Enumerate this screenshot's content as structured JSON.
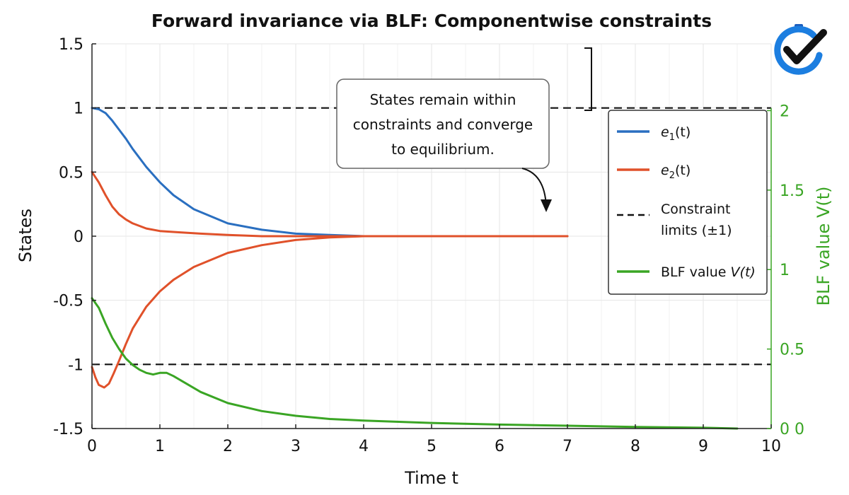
{
  "chart_data": {
    "type": "line",
    "title": "Forward invariance via BLF: Componentwise constraints",
    "xlabel": "Time t",
    "ylabel": "States",
    "y2label": "BLF value V(t)",
    "xlim": [
      0,
      10
    ],
    "ylim": [
      -1.5,
      1.5
    ],
    "y2lim": [
      0,
      2.42
    ],
    "xticks": [
      "0",
      "1",
      "2",
      "3",
      "4",
      "5",
      "6",
      "7",
      "8",
      "9",
      "10"
    ],
    "yticks": [
      "1.5",
      "1",
      "0.5",
      "0",
      "-0.5",
      "-1",
      "-1.5"
    ],
    "y2ticks": [
      "2",
      "1.5",
      "1",
      "0.5",
      "0 0"
    ],
    "grid": true,
    "legend_position": "right",
    "series": [
      {
        "name": "e1(t)",
        "color": "#2a6fc0",
        "axis": "left",
        "x": [
          0,
          0.1,
          0.2,
          0.3,
          0.4,
          0.5,
          0.6,
          0.8,
          1.0,
          1.2,
          1.5,
          2.0,
          2.5,
          3.0,
          3.5,
          4.0,
          5.0,
          6.0,
          7.0
        ],
        "y": [
          1.0,
          0.99,
          0.96,
          0.9,
          0.83,
          0.76,
          0.68,
          0.54,
          0.42,
          0.32,
          0.21,
          0.1,
          0.05,
          0.02,
          0.01,
          0.0,
          0.0,
          0.0,
          0.0
        ]
      },
      {
        "name": "e2(t)",
        "color": "#e0512a",
        "axis": "left",
        "x": [
          0,
          0.1,
          0.2,
          0.3,
          0.4,
          0.5,
          0.6,
          0.8,
          1.0,
          1.3,
          1.6,
          2.0,
          2.5,
          3.0,
          4.0,
          5.0,
          6.0,
          7.0
        ],
        "y": [
          0.5,
          0.42,
          0.32,
          0.23,
          0.17,
          0.13,
          0.1,
          0.06,
          0.04,
          0.03,
          0.02,
          0.01,
          0.0,
          0.0,
          0.0,
          0.0,
          0.0,
          0.0
        ]
      },
      {
        "name": "e2(t) lower branch",
        "color": "#e0512a",
        "axis": "left",
        "x": [
          0,
          0.05,
          0.1,
          0.18,
          0.25,
          0.32,
          0.4,
          0.5,
          0.6,
          0.8,
          1.0,
          1.2,
          1.5,
          2.0,
          2.5,
          3.0,
          3.5,
          4.0,
          5.0,
          6.0,
          7.0
        ],
        "y": [
          -1.02,
          -1.1,
          -1.16,
          -1.18,
          -1.15,
          -1.07,
          -0.97,
          -0.84,
          -0.72,
          -0.55,
          -0.43,
          -0.34,
          -0.24,
          -0.13,
          -0.07,
          -0.03,
          -0.01,
          0.0,
          0.0,
          0.0,
          0.0
        ]
      },
      {
        "name": "BLF value V(t)",
        "color": "#3aa524",
        "axis": "right",
        "x": [
          0,
          0.1,
          0.2,
          0.3,
          0.4,
          0.5,
          0.6,
          0.7,
          0.8,
          0.9,
          1.0,
          1.1,
          1.2,
          1.4,
          1.6,
          2.0,
          2.5,
          3.0,
          3.5,
          4.0,
          5.0,
          6.0,
          7.0,
          8.0,
          9.0,
          9.5
        ],
        "y": [
          0.82,
          0.76,
          0.66,
          0.57,
          0.5,
          0.44,
          0.4,
          0.37,
          0.35,
          0.34,
          0.35,
          0.35,
          0.33,
          0.28,
          0.23,
          0.16,
          0.11,
          0.08,
          0.06,
          0.05,
          0.035,
          0.025,
          0.018,
          0.01,
          0.005,
          0.0
        ]
      }
    ],
    "constraint_limits": {
      "name": "Constraint limits (±1)",
      "values": [
        1,
        -1
      ]
    },
    "legend": [
      {
        "label_main": "e",
        "label_sub": "1",
        "label_tail": "(t)",
        "color": "#2a6fc0",
        "style": "solid"
      },
      {
        "label_main": "e",
        "label_sub": "2",
        "label_tail": "(t)",
        "color": "#e0512a",
        "style": "solid"
      },
      {
        "label_line1": "Constraint",
        "label_line2": "limits (±1)",
        "color": "#111111",
        "style": "dashed"
      },
      {
        "label_main": "BLF value ",
        "label_tail": "V(t)",
        "color": "#3aa524",
        "style": "solid"
      }
    ],
    "annotation": {
      "lines": [
        "States remain within",
        "constraints and converge",
        "to equilibrium."
      ]
    }
  }
}
